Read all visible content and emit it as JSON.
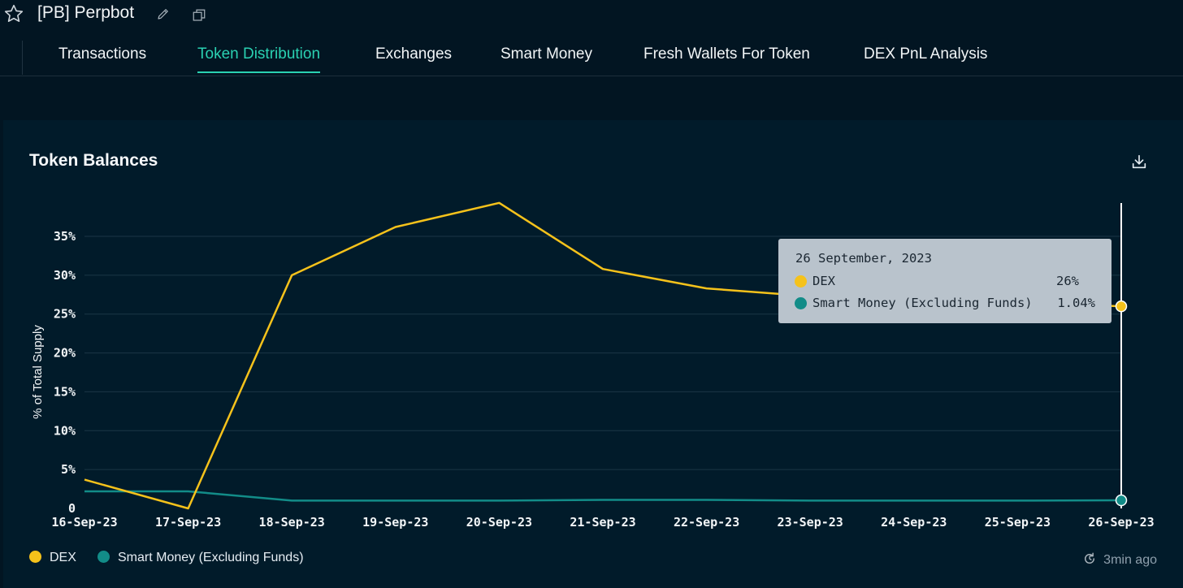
{
  "header": {
    "title": "[PB] Perpbot",
    "icons": [
      "star-icon",
      "pencil-icon",
      "copy-icon"
    ]
  },
  "tabs": [
    {
      "label": "Transactions",
      "active": false
    },
    {
      "label": "Token Distribution",
      "active": true
    },
    {
      "label": "Exchanges",
      "active": false
    },
    {
      "label": "Smart Money",
      "active": false
    },
    {
      "label": "Fresh Wallets For Token",
      "active": false
    },
    {
      "label": "DEX PnL Analysis",
      "active": false
    }
  ],
  "panel": {
    "title": "Token Balances",
    "download_icon": "download-icon"
  },
  "colors": {
    "accent": "#2ad1b2",
    "dex": "#f5c21b",
    "smart_money": "#128c88",
    "background": "#021522",
    "panel": "#011b2a"
  },
  "chart_data": {
    "type": "line",
    "ylabel": "% of Total Supply",
    "xlabel": "",
    "categories": [
      "16-Sep-23",
      "17-Sep-23",
      "18-Sep-23",
      "19-Sep-23",
      "20-Sep-23",
      "21-Sep-23",
      "22-Sep-23",
      "23-Sep-23",
      "24-Sep-23",
      "25-Sep-23",
      "26-Sep-23"
    ],
    "series": [
      {
        "name": "DEX",
        "values": [
          3.7,
          0.0,
          30.0,
          36.2,
          39.3,
          30.8,
          28.3,
          27.3,
          27.1,
          26.5,
          26.0
        ]
      },
      {
        "name": "Smart Money (Excluding Funds)",
        "values": [
          2.2,
          2.2,
          1.0,
          1.0,
          1.0,
          1.1,
          1.1,
          1.0,
          1.0,
          1.0,
          1.04
        ]
      }
    ],
    "yticks": [
      "0",
      "5%",
      "10%",
      "15%",
      "20%",
      "25%",
      "30%",
      "35%"
    ],
    "ylim": [
      0,
      40
    ],
    "grid": true,
    "legend_position": "bottom-left"
  },
  "tooltip": {
    "date": "26 September, 2023",
    "rows": [
      {
        "name": "DEX",
        "value": "26%"
      },
      {
        "name": "Smart Money (Excluding Funds)",
        "value": "1.04%"
      }
    ]
  },
  "legend": [
    {
      "label": "DEX"
    },
    {
      "label": "Smart Money (Excluding Funds)"
    }
  ],
  "footer": {
    "updated": "3min ago"
  }
}
